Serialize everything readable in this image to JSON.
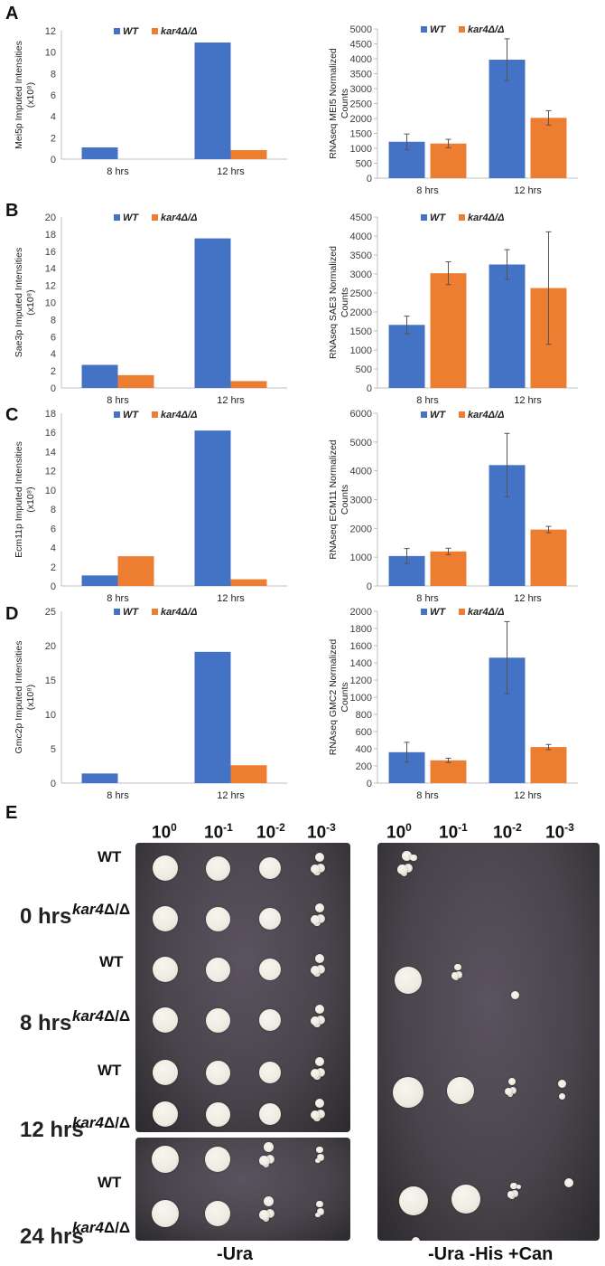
{
  "panel_letters": {
    "A": "A",
    "B": "B",
    "C": "C",
    "D": "D",
    "E": "E"
  },
  "colors": {
    "wt": "#4472C4",
    "kar4": "#ED7D31",
    "axis": "#BFBFBF",
    "text": "#404040"
  },
  "chart_data": [
    {
      "id": "A-protein",
      "type": "bar",
      "categories": [
        "8 hrs",
        "12 hrs"
      ],
      "series": [
        {
          "name": "WT",
          "values": [
            1.1,
            10.9
          ]
        },
        {
          "name": "kar4Δ/Δ",
          "values": [
            0,
            0.85
          ]
        }
      ],
      "ylabel_lines": [
        "Mei5p Imputed Intensities",
        "(x10⁸)"
      ],
      "ylim": [
        0,
        12
      ],
      "ticks": [
        0,
        2,
        4,
        6,
        8,
        10,
        12
      ],
      "legend": [
        "WT",
        "kar4Δ/Δ"
      ],
      "error_bars": false
    },
    {
      "id": "A-rna",
      "type": "bar",
      "categories": [
        "8 hrs",
        "12 hrs"
      ],
      "series": [
        {
          "name": "WT",
          "values": [
            1220,
            3970
          ],
          "errors": [
            260,
            700
          ]
        },
        {
          "name": "kar4Δ/Δ",
          "values": [
            1160,
            2020
          ],
          "errors": [
            140,
            240
          ]
        }
      ],
      "ylabel_lines": [
        "RNAseq MEI5 Normalized",
        "Counts"
      ],
      "ylim": [
        0,
        5000
      ],
      "ticks": [
        0,
        500,
        1000,
        1500,
        2000,
        2500,
        3000,
        3500,
        4000,
        4500,
        5000
      ],
      "legend": [
        "WT",
        "kar4Δ/Δ"
      ],
      "error_bars": true
    },
    {
      "id": "B-protein",
      "type": "bar",
      "categories": [
        "8 hrs",
        "12 hrs"
      ],
      "series": [
        {
          "name": "WT",
          "values": [
            2.7,
            17.5
          ]
        },
        {
          "name": "kar4Δ/Δ",
          "values": [
            1.5,
            0.8
          ]
        }
      ],
      "ylabel_lines": [
        "Sae3p Imputed Intensities",
        "(x10⁸)"
      ],
      "ylim": [
        0,
        20
      ],
      "ticks": [
        0,
        2,
        4,
        6,
        8,
        10,
        12,
        14,
        16,
        18,
        20
      ],
      "legend": [
        "WT",
        "kar4Δ/Δ"
      ],
      "error_bars": false
    },
    {
      "id": "B-rna",
      "type": "bar",
      "categories": [
        "8 hrs",
        "12 hrs"
      ],
      "series": [
        {
          "name": "WT",
          "values": [
            1660,
            3250
          ],
          "errors": [
            230,
            390
          ]
        },
        {
          "name": "kar4Δ/Δ",
          "values": [
            3020,
            2630
          ],
          "errors": [
            300,
            1480
          ]
        }
      ],
      "ylabel_lines": [
        "RNAseq SAE3 Normalized",
        "Counts"
      ],
      "ylim": [
        0,
        4500
      ],
      "ticks": [
        0,
        500,
        1000,
        1500,
        2000,
        2500,
        3000,
        3500,
        4000,
        4500
      ],
      "legend": [
        "WT",
        "kar4Δ/Δ"
      ],
      "error_bars": true
    },
    {
      "id": "C-protein",
      "type": "bar",
      "categories": [
        "8 hrs",
        "12 hrs"
      ],
      "series": [
        {
          "name": "WT",
          "values": [
            1.1,
            16.2
          ]
        },
        {
          "name": "kar4Δ/Δ",
          "values": [
            3.1,
            0.7
          ]
        }
      ],
      "ylabel_lines": [
        "Ecm11p Imputed Intensities",
        "(x10⁸)"
      ],
      "ylim": [
        0,
        18
      ],
      "ticks": [
        0,
        2,
        4,
        6,
        8,
        10,
        12,
        14,
        16,
        18
      ],
      "legend": [
        "WT",
        "kar4Δ/Δ"
      ],
      "error_bars": false
    },
    {
      "id": "C-rna",
      "type": "bar",
      "categories": [
        "8 hrs",
        "12 hrs"
      ],
      "series": [
        {
          "name": "WT",
          "values": [
            1040,
            4200
          ],
          "errors": [
            260,
            1100
          ]
        },
        {
          "name": "kar4Δ/Δ",
          "values": [
            1200,
            1960
          ],
          "errors": [
            110,
            110
          ]
        }
      ],
      "ylabel_lines": [
        "RNAseq ECM11 Normalized",
        "Counts"
      ],
      "ylim": [
        0,
        6000
      ],
      "ticks": [
        0,
        1000,
        2000,
        3000,
        4000,
        5000,
        6000
      ],
      "legend": [
        "WT",
        "kar4Δ/Δ"
      ],
      "error_bars": true
    },
    {
      "id": "D-protein",
      "type": "bar",
      "categories": [
        "8 hrs",
        "12 hrs"
      ],
      "series": [
        {
          "name": "WT",
          "values": [
            1.4,
            19.1
          ]
        },
        {
          "name": "kar4Δ/Δ",
          "values": [
            0,
            2.6
          ]
        }
      ],
      "ylabel_lines": [
        "Gmc2p Imputed Intensities",
        "(x10⁸)"
      ],
      "ylim": [
        0,
        25
      ],
      "ticks": [
        0,
        5,
        10,
        15,
        20,
        25
      ],
      "legend": [
        "WT",
        "kar4Δ/Δ"
      ],
      "error_bars": false
    },
    {
      "id": "D-rna",
      "type": "bar",
      "categories": [
        "8 hrs",
        "12 hrs"
      ],
      "series": [
        {
          "name": "WT",
          "values": [
            360,
            1460
          ],
          "errors": [
            115,
            420
          ]
        },
        {
          "name": "kar4Δ/Δ",
          "values": [
            265,
            420
          ],
          "errors": [
            25,
            30
          ]
        }
      ],
      "ylabel_lines": [
        "RNAseq GMC2 Normalized",
        "Counts"
      ],
      "ylim": [
        0,
        2000
      ],
      "ticks": [
        0,
        200,
        400,
        600,
        800,
        1000,
        1200,
        1400,
        1600,
        1800,
        2000
      ],
      "legend": [
        "WT",
        "kar4Δ/Δ"
      ],
      "error_bars": true
    }
  ],
  "plates": {
    "dilutions": [
      {
        "base": "10",
        "exp": "0"
      },
      {
        "base": "10",
        "exp": "-1"
      },
      {
        "base": "10",
        "exp": "-2"
      },
      {
        "base": "10",
        "exp": "-3"
      }
    ],
    "time_points": [
      "0 hrs",
      "8 hrs",
      "12 hrs",
      "24 hrs"
    ],
    "strains": [
      {
        "prefix": "",
        "text": "WT"
      },
      {
        "prefix": "kar4",
        "text": "Δ/Δ"
      }
    ],
    "captions": {
      "left": "-Ura",
      "right": "-Ura -His +Can"
    },
    "colors": {
      "plate": "#4a454c",
      "plate_edge": "#2c2a2e"
    }
  }
}
